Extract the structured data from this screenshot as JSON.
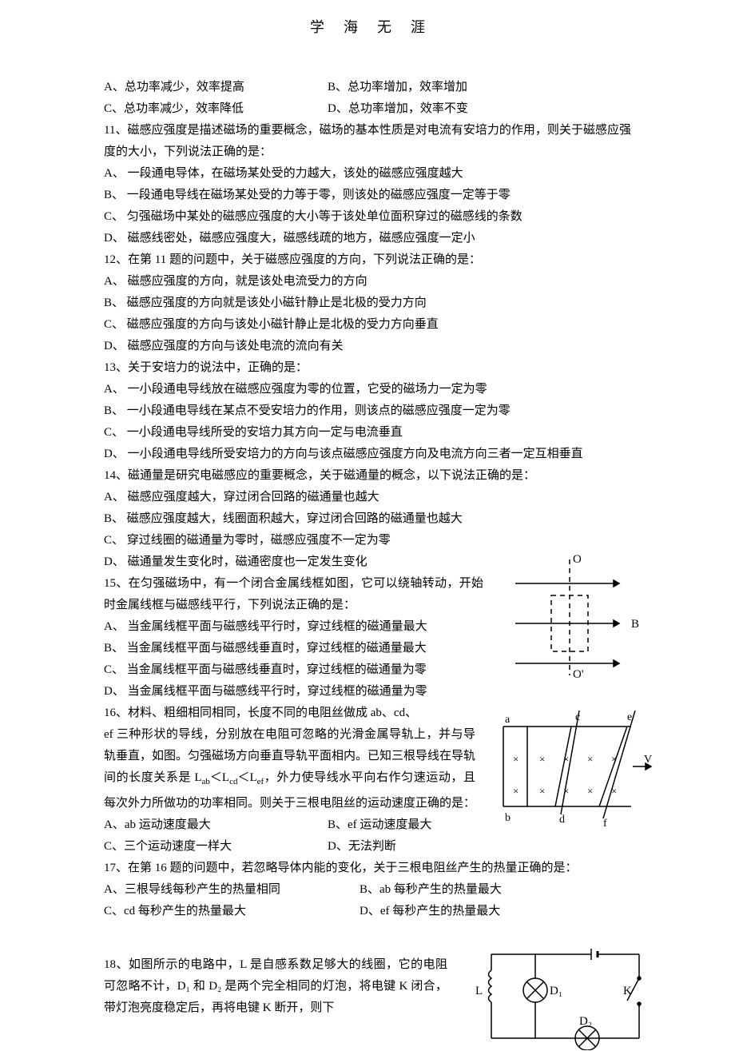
{
  "header": "学海无涯",
  "body": [
    {
      "type": "opt2",
      "a": "A、总功率减少，效率提高",
      "b": "B、总功率增加，效率增加"
    },
    {
      "type": "opt2",
      "a": "C、总功率减少，效率降低",
      "b": "D、总功率增加，效率不变"
    },
    {
      "type": "p",
      "t": "11、磁感应强度是描述磁场的重要概念，磁场的基本性质是对电流有安培力的作用，则关于磁感应强度的大小，下列说法正确的是："
    },
    {
      "type": "p",
      "t": "A、 一段通电导体，在磁场某处受的力越大，该处的磁感应强度越大"
    },
    {
      "type": "p",
      "t": "B、 一段通电导线在磁场某处受的力等于零，则该处的磁感应强度一定等于零"
    },
    {
      "type": "p",
      "t": "C、 匀强磁场中某处的磁感应强度的大小等于该处单位面积穿过的磁感线的条数"
    },
    {
      "type": "p",
      "t": "D、 磁感线密处，磁感应强度大，磁感线疏的地方，磁感应强度一定小"
    },
    {
      "type": "p",
      "t": "12、在第 11 题的问题中，关于磁感应强度的方向，下列说法正确的是："
    },
    {
      "type": "p",
      "t": "A、 磁感应强度的方向，就是该处电流受力的方向"
    },
    {
      "type": "p",
      "t": "B、 磁感应强度的方向就是该处小磁针静止是北极的受力方向"
    },
    {
      "type": "p",
      "t": "C、 磁感应强度的方向与该处小磁针静止是北极的受力方向垂直"
    },
    {
      "type": "p",
      "t": "D、 磁感应强度的方向与该处电流的流向有关"
    },
    {
      "type": "p",
      "t": "13、关于安培力的说法中，正确的是："
    },
    {
      "type": "p",
      "t": "A、 一小段通电导线放在磁感应强度为零的位置，它受的磁场力一定为零"
    },
    {
      "type": "p",
      "t": "B、 一小段通电导线在某点不受安培力的作用，则该点的磁感应强度一定为零"
    },
    {
      "type": "p",
      "t": "C、 一小段通电导线所受的安培力其方向一定与电流垂直"
    },
    {
      "type": "p",
      "t": "D、 一小段通电导线所受安培力的方向与该点磁感应强度方向及电流方向三者一定互相垂直",
      "hang": true
    },
    {
      "type": "p",
      "t": "14、磁通量是研究电磁感应的重要概念，关于磁通量的概念，以下说法正确的是："
    },
    {
      "type": "p",
      "t": "A、 磁感应强度越大，穿过闭合回路的磁通量也越大"
    },
    {
      "type": "p",
      "t": "B、 磁感应强度越大，线圈面积越大，穿过闭合回路的磁通量也越大"
    },
    {
      "type": "p",
      "t": "C、 穿过线圈的磁通量为零时，磁感应强度不一定为零"
    }
  ],
  "q15": {
    "d": "D、 磁通量发生变化时，磁通密度也一定发生变化",
    "stem": "15、在匀强磁场中，有一个闭合金属线框如图，它可以绕轴转动，开始时金属线框与磁感线平行，下列说法正确的是：",
    "a": "A、 当金属线框平面与磁感线平行时，穿过线框的磁通量最大",
    "b": "B、 当金属线框平面与磁感线垂直时，穿过线框的磁通量最大",
    "c": "C、 当金属线框平面与磁感线垂直时，穿过线框的磁通量为零",
    "dopt": "D、 当金属线框平面与磁感线平行时，穿过线框的磁通量为零"
  },
  "q16": {
    "stem1": "16、材料、粗细相同相同，长度不同的电阻丝做成 ab、cd、",
    "stem2": "ef 三种形状的导线，分别放在电阻可忽略的光滑金属导轨上，并与导轨垂直，如图。匀强磁场方向垂直导轨平面相内。已知三根导线在导轨间的长度关系是 L",
    "ab": "ab",
    "lt1": "＜L",
    "cd": "cd",
    "lt2": "＜L",
    "ef": "ef",
    "stem3": "，外力使导线水平向右作匀速运动，且每次外力所做功的功率相同。则关于三根电阻丝的运动速度正确的是：",
    "a": "A、ab 运动速度最大",
    "b": "B、ef 运动速度最大",
    "c": "C、三个运动速度一样大",
    "d": "D、无法判断"
  },
  "q17": {
    "stem": "17、在第 16 题的问题中，若忽略导体内能的变化，关于三根电阻丝产生的热量正确的是：",
    "a": "A、三根导线每秒产生的热量相同",
    "b": "B、ab 每秒产生的热量最大",
    "c": "C、cd 每秒产生的热量最大",
    "d": "D、ef 每秒产生的热量最大"
  },
  "q18": {
    "stem": "18、如图所示的电路中，L 是自感系数足够大的线圈，它的电阻可忽略不计，D₁ 和 D₂ 是两个完全相同的灯泡，将电键 K 闭合，带灯泡亮度稳定后，再将电键 K 断开，则下"
  },
  "fig1": {
    "O": "O",
    "O2": "O'",
    "B": "B",
    "stroke": "#000000"
  },
  "fig2": {
    "a": "a",
    "b": "b",
    "c": "c",
    "d": "d",
    "e": "e",
    "f": "f",
    "V": "V",
    "stroke": "#000000"
  },
  "fig3": {
    "L": "L",
    "D1": "D₁",
    "D2": "D₂",
    "K": "K",
    "stroke": "#000000"
  }
}
